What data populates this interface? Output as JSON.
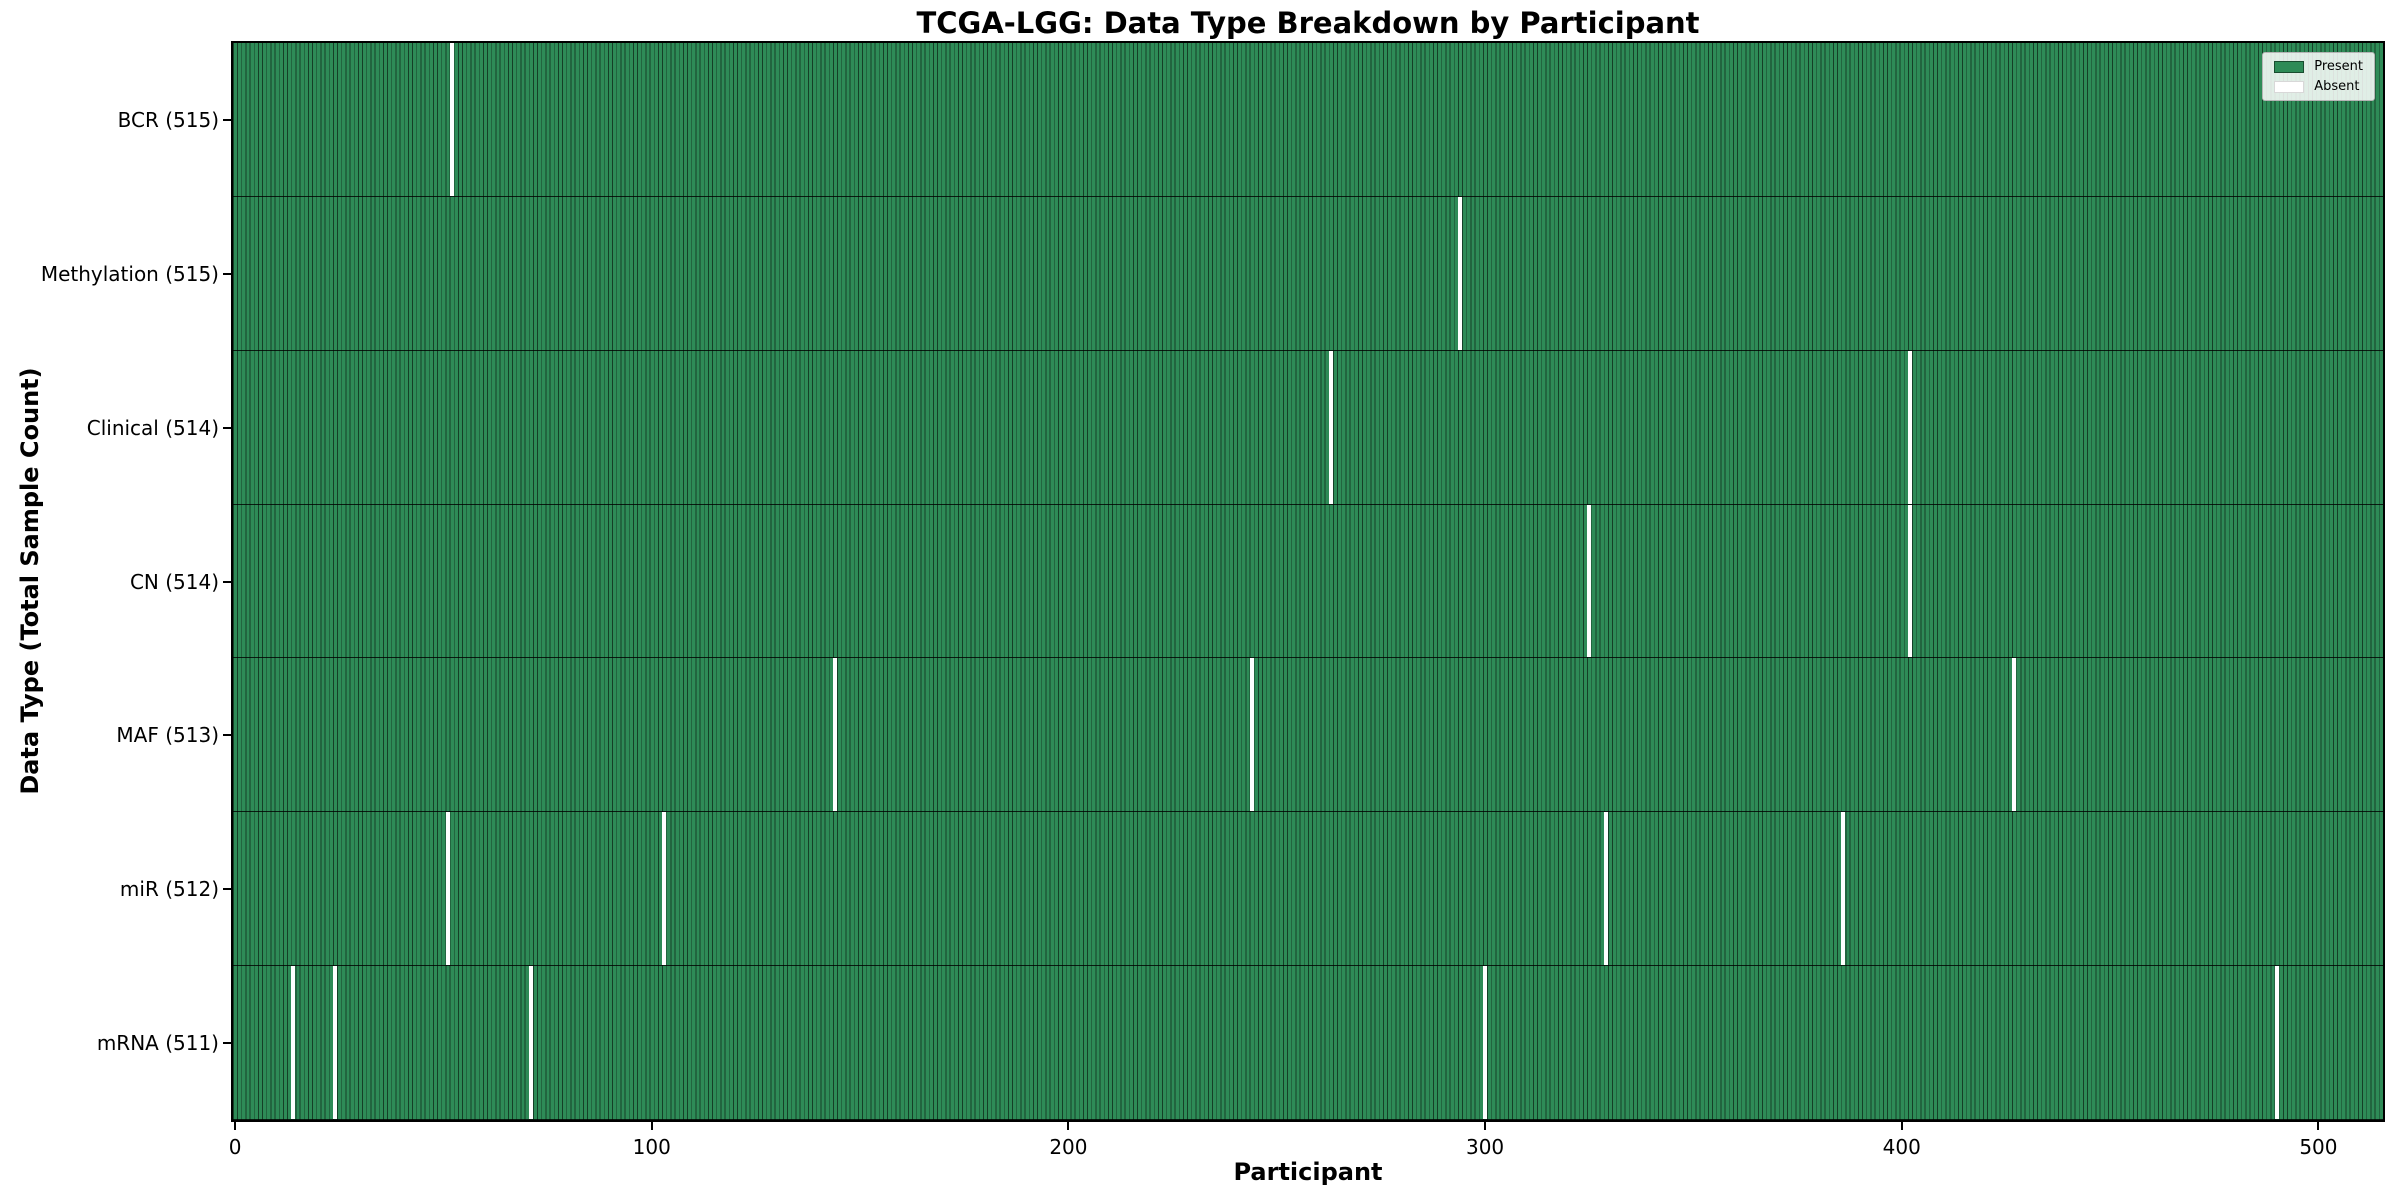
{
  "title": "TCGA-LGG: Data Type Breakdown by Participant",
  "axes": {
    "xlabel": "Participant",
    "ylabel": "Data Type (Total Sample Count)",
    "x_ticks": [
      0,
      100,
      200,
      300,
      400,
      500
    ]
  },
  "legend": {
    "items": [
      {
        "label": "Present",
        "color": "#2e8b57"
      },
      {
        "label": "Absent",
        "color": "#ffffff"
      }
    ]
  },
  "chart_data": {
    "type": "heatmap",
    "title": "TCGA-LGG: Data Type Breakdown by Participant",
    "xlabel": "Participant",
    "ylabel": "Data Type (Total Sample Count)",
    "x_range": [
      0,
      515
    ],
    "n_participants": 516,
    "x_ticks": [
      0,
      100,
      200,
      300,
      400,
      500
    ],
    "legend_position": "upper right",
    "colors": {
      "present": "#2e8b57",
      "absent": "#ffffff",
      "bar_edge": "rgba(0,0,0,0.55)"
    },
    "rows": [
      {
        "label": "BCR (515)",
        "data_type": "BCR",
        "present_count": 515,
        "absent_participants": [
          52
        ]
      },
      {
        "label": "Methylation (515)",
        "data_type": "Methylation",
        "present_count": 515,
        "absent_participants": [
          294
        ]
      },
      {
        "label": "Clinical (514)",
        "data_type": "Clinical",
        "present_count": 514,
        "absent_participants": [
          263,
          402
        ]
      },
      {
        "label": "CN (514)",
        "data_type": "CN",
        "present_count": 514,
        "absent_participants": [
          325,
          402
        ]
      },
      {
        "label": "MAF (513)",
        "data_type": "MAF",
        "present_count": 513,
        "absent_participants": [
          144,
          244,
          427
        ]
      },
      {
        "label": "miR (512)",
        "data_type": "miR",
        "present_count": 512,
        "absent_participants": [
          51,
          103,
          329,
          386
        ]
      },
      {
        "label": "mRNA (511)",
        "data_type": "mRNA",
        "present_count": 511,
        "absent_participants": [
          14,
          24,
          71,
          300,
          490
        ]
      }
    ]
  }
}
